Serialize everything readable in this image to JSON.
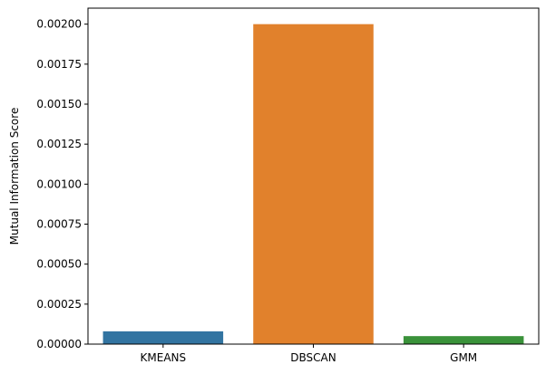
{
  "chart_data": {
    "type": "bar",
    "categories": [
      "KMEANS",
      "DBSCAN",
      "GMM"
    ],
    "values": [
      8e-05,
      0.002,
      5e-05
    ],
    "colors": [
      "#3274a1",
      "#e1812c",
      "#3a923a"
    ],
    "title": "",
    "xlabel": "",
    "ylabel": "Mutual Information Score",
    "ylim": [
      0,
      0.0021
    ],
    "yticks": [
      0,
      0.00025,
      0.0005,
      0.00075,
      0.001,
      0.00125,
      0.0015,
      0.00175,
      0.002
    ],
    "ytick_labels": [
      "0.00000",
      "0.00025",
      "0.00050",
      "0.00075",
      "0.00100",
      "0.00125",
      "0.00150",
      "0.00175",
      "0.00200"
    ],
    "grid": false,
    "legend": "none"
  }
}
